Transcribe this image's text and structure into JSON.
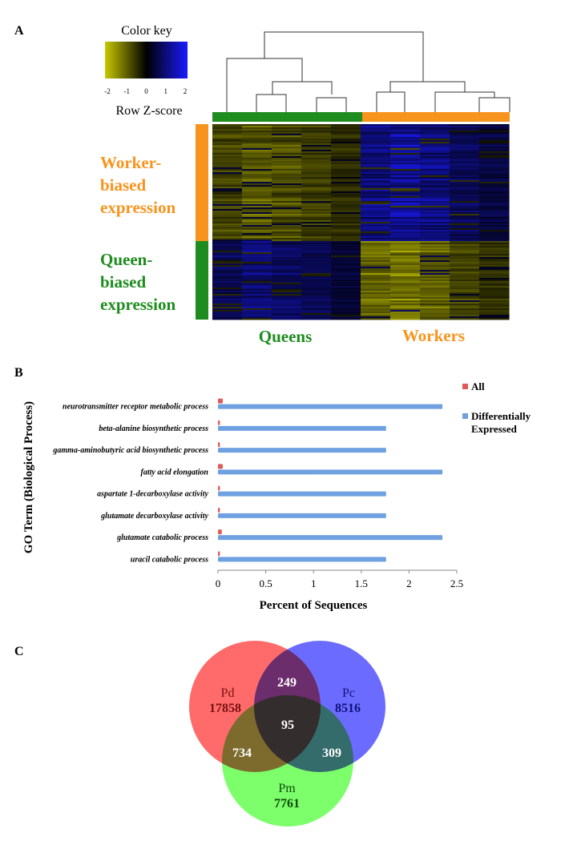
{
  "panels": {
    "a": "A",
    "b": "B",
    "c": "C"
  },
  "heatmap": {
    "color_key_title": "Color key",
    "color_key_ticks": [
      "-2",
      "-1",
      "0",
      "1",
      "2"
    ],
    "color_key_label": "Row Z-score",
    "row_group_labels": {
      "worker": [
        "Worker-",
        "biased",
        "expression"
      ],
      "queen": [
        "Queen-",
        "biased",
        "expression"
      ]
    },
    "column_group_labels": {
      "queens": "Queens",
      "workers": "Workers"
    },
    "colors": {
      "worker": "#f7941d",
      "queen": "#1e8c1e",
      "low": "#c8c800",
      "mid": "#000000",
      "high": "#1a1aff"
    }
  },
  "chart_data": {
    "type": "bar",
    "orientation": "horizontal",
    "categories": [
      "neurotransmitter receptor metabolic process",
      "beta-alanine biosynthetic process",
      "gamma-aminobutyric acid biosynthetic process",
      "fatty acid elongation",
      "aspartate 1-decarboxylase activity",
      "glutamate decarboxylase activity",
      "glutamate catabolic process",
      "uracil catabolic process"
    ],
    "series": [
      {
        "name": "All",
        "color": "#e05a5a",
        "values": [
          0.05,
          0.02,
          0.02,
          0.05,
          0.02,
          0.02,
          0.04,
          0.02
        ]
      },
      {
        "name": "Differentially Expressed",
        "color": "#6fa0e0",
        "values": [
          2.35,
          1.76,
          1.76,
          2.35,
          1.76,
          1.76,
          2.35,
          1.76
        ]
      }
    ],
    "legend_lines": [
      [
        "All"
      ],
      [
        "Differentially",
        "Expressed"
      ]
    ],
    "xlabel": "Percent of Sequences",
    "ylabel": "GO Term (Biological Process)",
    "xlim": [
      0,
      2.5
    ],
    "xticks": [
      "0",
      "0.5",
      "1",
      "1.5",
      "2",
      "2.5"
    ],
    "legend_position": "top-right",
    "grid": false
  },
  "venn": {
    "sets": [
      {
        "name": "Pd",
        "count": "17858",
        "color": "#ff6b6b"
      },
      {
        "name": "Pc",
        "count": "8516",
        "color": "#6b6bff"
      },
      {
        "name": "Pm",
        "count": "7761",
        "color": "#7cff6b"
      }
    ],
    "intersections": {
      "pd_pc": "249",
      "pd_pm": "734",
      "pc_pm": "309",
      "all": "95"
    }
  }
}
